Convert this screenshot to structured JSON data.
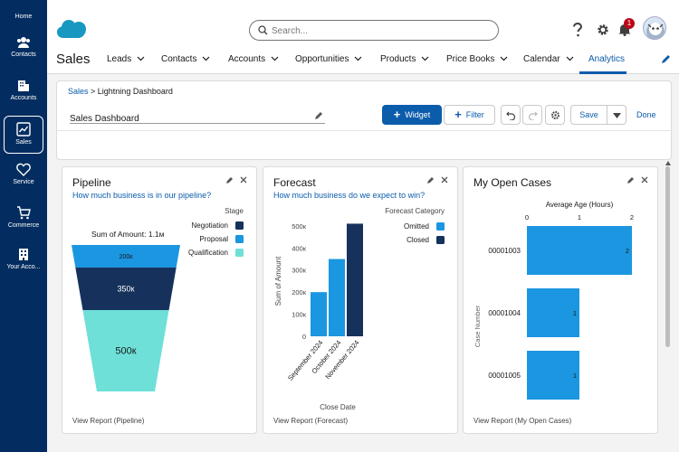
{
  "left_rail": {
    "items": [
      {
        "label": "Home"
      },
      {
        "label": "Contacts"
      },
      {
        "label": "Accounts"
      },
      {
        "label": "Sales"
      },
      {
        "label": "Service"
      },
      {
        "label": "Commerce"
      },
      {
        "label": "Your Acco..."
      }
    ]
  },
  "topbar": {
    "search_placeholder": "Search...",
    "notification_count": "1",
    "icons": [
      "cloud-logo",
      "search-icon",
      "help-icon",
      "gear-icon",
      "bell-icon",
      "avatar"
    ]
  },
  "navbar": {
    "app_name": "Sales",
    "items": [
      {
        "label": "Leads"
      },
      {
        "label": "Contacts"
      },
      {
        "label": "Accounts"
      },
      {
        "label": "Opportunities"
      },
      {
        "label": "Products"
      },
      {
        "label": "Price Books"
      },
      {
        "label": "Calendar"
      },
      {
        "label": "Analytics"
      }
    ],
    "active": "Analytics"
  },
  "header": {
    "breadcrumb_link": "Sales",
    "breadcrumb_rest": "> Lightning Dashboard",
    "dashboard_title": "Sales Dashboard",
    "widget_label": "Widget",
    "filter_label": "Filter",
    "save_label": "Save",
    "done_label": "Done"
  },
  "widgets": {
    "pipeline": {
      "title": "Pipeline",
      "subtitle": "How much business is in our pipeline?",
      "footer": "View Report (Pipeline)"
    },
    "forecast": {
      "title": "Forecast",
      "subtitle": "How much business do we expect to win?",
      "footer": "View Report (Forecast)"
    },
    "cases": {
      "title": "My Open Cases",
      "footer": "View Report (My Open Cases)"
    }
  },
  "chart_data": [
    {
      "type": "funnel",
      "title": "Sum of Amount: 1.1м",
      "legend_title": "Stage",
      "legend_position": "right",
      "stages": [
        {
          "name": "Negotiation",
          "value_label": "",
          "color": "#16325c"
        },
        {
          "name": "Proposal",
          "value_label": "200к",
          "color": "#1b96e0"
        },
        {
          "name": "Qualification",
          "value_label": "",
          "color": "#6ee0d8"
        }
      ],
      "segments": [
        {
          "label": "200к",
          "color": "#1b96e0"
        },
        {
          "label": "350к",
          "color": "#16325c"
        },
        {
          "label": "500к",
          "color": "#6ee0d8"
        }
      ]
    },
    {
      "type": "bar",
      "xlabel": "Close Date",
      "ylabel": "Sum of Amount",
      "legend_title": "Forecast Category",
      "legend_position": "top-right",
      "categories": [
        "September 2024",
        "October 2024",
        "November 2024"
      ],
      "series": [
        {
          "name": "Omitted",
          "color": "#1b96e0",
          "values": [
            200000,
            350000,
            0
          ]
        },
        {
          "name": "Closed",
          "color": "#16325c",
          "values": [
            0,
            0,
            510000
          ]
        }
      ],
      "ylim": [
        0,
        520000
      ],
      "yticks": [
        "0",
        "100к",
        "200к",
        "300к",
        "400к",
        "500к"
      ]
    },
    {
      "type": "bar",
      "orientation": "horizontal",
      "title": "Average Age (Hours)",
      "ylabel": "Case Number",
      "categories": [
        "00001003",
        "00001004",
        "00001005"
      ],
      "values": [
        2,
        1,
        1
      ],
      "xlim": [
        0,
        2
      ],
      "xticks": [
        "0",
        "1",
        "2"
      ],
      "color": "#1b96e0"
    }
  ]
}
